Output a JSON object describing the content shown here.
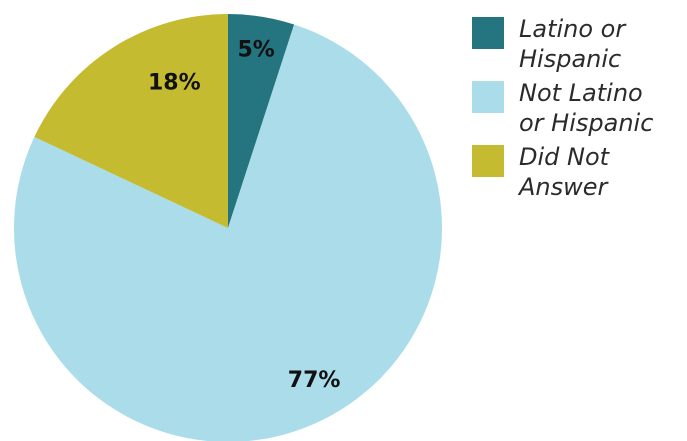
{
  "chart_data": {
    "type": "pie",
    "title": "",
    "legend_position": "right",
    "categories": [
      "Latino or Hispanic",
      "Not Latino or Hispanic",
      "Did Not Answer"
    ],
    "values": [
      5,
      77,
      18
    ],
    "value_labels": [
      "5%",
      "77%",
      "18%"
    ],
    "colors": [
      "#247580",
      "#aadcea",
      "#c4bb30"
    ],
    "legend": [
      {
        "label": "Latino or Hispanic",
        "lines": [
          "Latino or",
          "Hispanic"
        ],
        "color": "#247580"
      },
      {
        "label": "Not Latino or Hispanic",
        "lines": [
          "Not Latino",
          "or Hispanic"
        ],
        "color": "#aadcea"
      },
      {
        "label": "Did Not Answer",
        "lines": [
          "Did Not",
          "Answer"
        ],
        "color": "#c4bb30"
      }
    ]
  }
}
